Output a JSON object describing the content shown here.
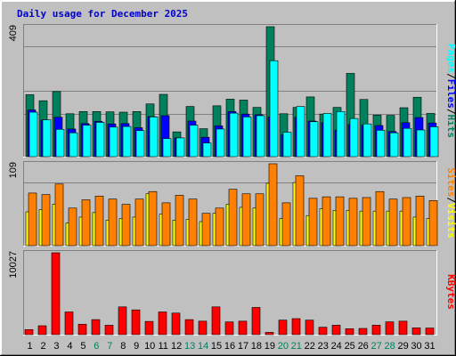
{
  "title": "Daily usage for December 2025",
  "colors": {
    "hits": "#00805c",
    "files": "#0000ff",
    "pages": "#00ffff",
    "visits": "#ffff00",
    "sites": "#ff8000",
    "kbytes": "#ff0000",
    "weekend_label": "#00805c",
    "weekday_label": "#000000",
    "axis_label": "#000000"
  },
  "legends": {
    "top": [
      {
        "text": "Hits",
        "color": "#00805c"
      },
      {
        "text": "/",
        "color": "#000000"
      },
      {
        "text": "Files",
        "color": "#0000ff"
      },
      {
        "text": "/",
        "color": "#000000"
      },
      {
        "text": "Pages",
        "color": "#00ffff"
      }
    ],
    "mid": [
      {
        "text": "Visits",
        "color": "#ffff00"
      },
      {
        "text": "/",
        "color": "#000000"
      },
      {
        "text": "Sites",
        "color": "#ff8000"
      }
    ],
    "bottom": [
      {
        "text": "KBytes",
        "color": "#ff0000"
      }
    ]
  },
  "chart_data": {
    "type": "bar",
    "days": [
      "1",
      "2",
      "3",
      "4",
      "5",
      "6",
      "7",
      "8",
      "9",
      "10",
      "11",
      "12",
      "13",
      "14",
      "15",
      "16",
      "17",
      "18",
      "19",
      "20",
      "21",
      "22",
      "23",
      "24",
      "25",
      "26",
      "27",
      "28",
      "29",
      "30",
      "31"
    ],
    "weekend_days": [
      "6",
      "7",
      "13",
      "14",
      "20",
      "21",
      "27",
      "28"
    ],
    "panels": [
      {
        "name": "hits-files-pages",
        "max_label": "409",
        "ylim": [
          0,
          409
        ],
        "series": [
          {
            "name": "Hits",
            "values": [
              195,
              176,
              205,
              135,
              142,
              142,
              141,
              140,
              142,
              166,
              196,
              78,
              158,
              88,
              160,
              181,
              178,
              155,
              409,
              135,
              155,
              188,
              134,
              155,
              262,
              180,
              131,
              130,
              154,
              187,
              136
            ]
          },
          {
            "name": "Files",
            "values": [
              147,
              115,
              124,
              87,
              104,
              111,
              103,
              104,
              91,
              126,
              129,
              59,
              112,
              61,
              97,
              142,
              134,
              132,
              125,
              69,
              124,
              112,
              107,
              83,
              101,
              99,
              98,
              79,
              107,
              123,
              106
            ]
          },
          {
            "name": "Pages",
            "values": [
              140,
              116,
              86,
              75,
              99,
              108,
              93,
              95,
              82,
              125,
              57,
              59,
              99,
              43,
              87,
              137,
              125,
              129,
              302,
              77,
              158,
              110,
              136,
              142,
              120,
              103,
              83,
              75,
              89,
              84,
              94
            ]
          }
        ]
      },
      {
        "name": "visits-sites",
        "max_label": "109",
        "ylim": [
          0,
          109
        ],
        "series": [
          {
            "name": "Visits",
            "values": [
              45,
              48,
              55,
              30,
              38,
              44,
              34,
              36,
              38,
              69,
              42,
              34,
              35,
              32,
              43,
              55,
              51,
              50,
              83,
              36,
              84,
              40,
              49,
              47,
              47,
              46,
              46,
              46,
              46,
              38,
              36
            ]
          },
          {
            "name": "Sites",
            "values": [
              70,
              68,
              82,
              50,
              61,
              66,
              62,
              55,
              62,
              72,
              57,
              67,
              62,
              43,
              50,
              75,
              69,
              69,
              109,
              57,
              93,
              63,
              65,
              65,
              63,
              64,
              72,
              62,
              64,
              66,
              60
            ]
          }
        ]
      },
      {
        "name": "kbytes",
        "max_label": "10027",
        "ylim": [
          0,
          10027
        ],
        "series": [
          {
            "name": "KBytes",
            "values": [
              620,
              1090,
              10027,
              2780,
              1280,
              1840,
              1150,
              3400,
              3030,
              1620,
              2780,
              2640,
              1840,
              1650,
              3400,
              1560,
              1650,
              3330,
              280,
              1780,
              1960,
              1780,
              910,
              1160,
              730,
              760,
              1160,
              1570,
              1650,
              830,
              810
            ]
          }
        ]
      }
    ]
  }
}
